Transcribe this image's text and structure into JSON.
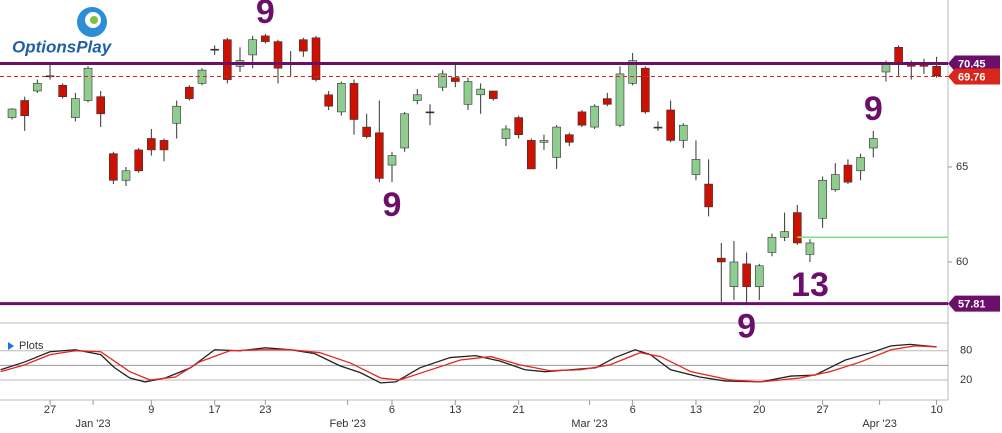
{
  "logo": "OptionsPlay",
  "chart_data": [
    {
      "type": "candlestick",
      "xlim": [
        -0.95,
        73.9
      ],
      "ylim": [
        56.84,
        73.79
      ],
      "yticks": [
        60,
        65
      ],
      "xticks": [
        {
          "value": 3,
          "label": "27"
        },
        {
          "value": 11,
          "label": "9"
        },
        {
          "value": 16,
          "label": "17"
        },
        {
          "value": 20,
          "label": "23"
        },
        {
          "value": 30,
          "label": "6"
        },
        {
          "value": 35,
          "label": "13"
        },
        {
          "value": 40,
          "label": "21"
        },
        {
          "value": 49,
          "label": "6"
        },
        {
          "value": 54,
          "label": "13"
        },
        {
          "value": 59,
          "label": "20"
        },
        {
          "value": 64,
          "label": "27"
        },
        {
          "value": 73,
          "label": "10"
        }
      ],
      "xticks_months": [
        {
          "value": 6.4,
          "label": "Jan '23"
        },
        {
          "value": 26.5,
          "label": "Feb '23"
        },
        {
          "value": 45.6,
          "label": "Mar '23"
        },
        {
          "value": 68.5,
          "label": "Apr '23"
        }
      ],
      "up_color": "#8fcc8f",
      "down_color": "#cc1100",
      "open": [
        67.6,
        68.5,
        69.0,
        69.8,
        69.3,
        67.6,
        68.5,
        68.7,
        65.7,
        64.3,
        65.9,
        66.5,
        66.4,
        67.3,
        69.2,
        69.4,
        71.2,
        71.7,
        70.3,
        70.9,
        71.9,
        71.6,
        70.5,
        71.7,
        71.8,
        68.8,
        67.9,
        69.4,
        67.1,
        66.8,
        65.1,
        66.0,
        68.5,
        67.9,
        69.2,
        69.7,
        68.3,
        68.8,
        69.0,
        66.5,
        67.6,
        66.4,
        66.3,
        65.5,
        66.7,
        67.9,
        67.1,
        68.6,
        67.2,
        69.4,
        70.2,
        67.1,
        68.0,
        66.4,
        64.6,
        64.1,
        60.2,
        58.7,
        59.9,
        58.7,
        60.5,
        61.3,
        62.6,
        60.4,
        62.3,
        63.8,
        65.1,
        64.8,
        66.0,
        70.0,
        71.3,
        70.5,
        70.5,
        70.3
      ],
      "high": [
        68.1,
        68.7,
        69.6,
        70.5,
        69.4,
        68.9,
        70.3,
        69.0,
        65.8,
        65.0,
        66.0,
        67.0,
        66.5,
        68.5,
        69.3,
        70.2,
        71.4,
        71.8,
        71.3,
        71.9,
        72.0,
        71.7,
        71.1,
        71.8,
        71.9,
        69.0,
        69.5,
        69.6,
        67.8,
        68.5,
        65.8,
        67.9,
        69.1,
        68.3,
        70.1,
        70.5,
        69.7,
        69.4,
        69.0,
        67.2,
        67.7,
        66.5,
        66.7,
        67.2,
        66.8,
        68.0,
        68.3,
        68.9,
        70.3,
        71.0,
        70.3,
        67.4,
        68.5,
        67.3,
        66.4,
        65.4,
        61.0,
        61.1,
        60.5,
        59.9,
        61.5,
        62.6,
        63.0,
        61.2,
        64.5,
        65.2,
        65.4,
        65.7,
        66.9,
        70.6,
        71.4,
        70.6,
        70.7,
        70.8
      ],
      "low": [
        67.5,
        66.9,
        68.9,
        69.6,
        68.6,
        67.4,
        68.4,
        67.1,
        64.1,
        64.0,
        64.7,
        65.6,
        65.3,
        66.5,
        68.5,
        69.3,
        70.9,
        69.4,
        70.0,
        70.2,
        71.5,
        69.4,
        69.8,
        70.8,
        69.5,
        68.0,
        67.7,
        66.7,
        66.5,
        64.2,
        64.2,
        65.8,
        68.3,
        67.2,
        69.0,
        69.2,
        68.0,
        67.8,
        68.5,
        66.1,
        66.5,
        64.9,
        65.9,
        64.9,
        66.1,
        67.1,
        67.0,
        68.2,
        67.1,
        69.3,
        67.8,
        66.9,
        66.3,
        66.0,
        64.3,
        62.4,
        57.9,
        58.0,
        57.8,
        58.0,
        60.3,
        61.1,
        60.9,
        60.0,
        61.8,
        63.7,
        64.1,
        64.3,
        65.5,
        69.5,
        69.8,
        69.6,
        69.9,
        69.7
      ],
      "close": [
        68.05,
        67.7,
        69.4,
        69.8,
        68.7,
        68.6,
        70.2,
        67.8,
        64.3,
        64.8,
        64.8,
        65.9,
        65.9,
        68.2,
        68.6,
        70.1,
        71.2,
        69.6,
        70.6,
        71.7,
        71.6,
        70.2,
        70.5,
        71.1,
        69.6,
        68.2,
        69.4,
        67.5,
        66.6,
        64.4,
        65.6,
        67.8,
        68.8,
        67.9,
        69.9,
        69.5,
        69.5,
        69.1,
        68.6,
        67.0,
        66.7,
        64.9,
        66.4,
        67.1,
        66.3,
        67.2,
        68.2,
        68.3,
        69.9,
        70.6,
        67.9,
        67.1,
        66.4,
        67.2,
        65.4,
        62.9,
        60.0,
        60.0,
        58.7,
        59.8,
        61.3,
        61.6,
        61.0,
        61.0,
        64.3,
        64.6,
        64.2,
        65.5,
        66.5,
        70.4,
        70.4,
        70.3,
        70.3,
        69.8
      ],
      "levels": [
        {
          "value": 70.45,
          "color": "#6b0f6b",
          "style": "solid",
          "tag": true
        },
        {
          "value": 69.76,
          "color": "#d9261c",
          "style": "dashed",
          "tag": true
        },
        {
          "value": 57.81,
          "color": "#6b0f6b",
          "style": "solid",
          "tag": true
        },
        {
          "value": 61.3,
          "color": "#7ee07e",
          "style": "thin",
          "start": 62,
          "tag": false
        }
      ],
      "annotations": [
        {
          "text": "9",
          "index": 20,
          "position": "above"
        },
        {
          "text": "9",
          "index": 30,
          "position": "below"
        },
        {
          "text": "9",
          "index": 58,
          "position": "below"
        },
        {
          "text": "13",
          "index": 63,
          "position": "below"
        },
        {
          "text": "9",
          "index": 68,
          "position": "above"
        }
      ]
    },
    {
      "type": "line",
      "title": "Plots",
      "ylim": [
        0,
        100
      ],
      "yticks": [
        20,
        80
      ],
      "levels": [
        50
      ],
      "series": [
        {
          "name": "%K",
          "color": "#222222",
          "x": [
            -0.9,
            1.0,
            3.0,
            5.0,
            7.0,
            8.1,
            9.3,
            10.5,
            12.1,
            14.1,
            16.0,
            18.0,
            20.0,
            22.0,
            23.9,
            25.9,
            27.5,
            29.1,
            30.3,
            32.2,
            34.6,
            36.6,
            38.5,
            40.5,
            42.1,
            44.1,
            46.1,
            47.6,
            49.2,
            50.4,
            52.0,
            54.3,
            56.3,
            59.1,
            61.5,
            63.4,
            65.8,
            67.8,
            69.4,
            70.9,
            73.0
          ],
          "values": [
            41,
            57,
            78,
            82,
            72,
            45,
            24,
            16,
            24,
            45,
            82,
            80,
            86,
            82,
            74,
            49,
            35,
            14,
            16,
            45,
            66,
            70,
            59,
            41,
            37,
            41,
            45,
            66,
            82,
            72,
            41,
            26,
            18,
            16,
            28,
            30,
            61,
            76,
            90,
            93,
            88
          ]
        },
        {
          "name": "%D",
          "color": "#e8231e",
          "x": [
            -0.9,
            1.0,
            3.0,
            5.0,
            7.0,
            9.3,
            10.9,
            12.9,
            14.8,
            17.2,
            19.6,
            22.0,
            24.3,
            26.7,
            29.1,
            30.6,
            32.6,
            35.4,
            37.8,
            40.1,
            42.5,
            44.9,
            47.2,
            49.6,
            51.2,
            53.6,
            56.7,
            59.1,
            62.2,
            64.6,
            67.0,
            69.4,
            71.3,
            73.0
          ],
          "values": [
            37,
            51,
            72,
            80,
            78,
            37,
            20,
            26,
            57,
            80,
            82,
            82,
            76,
            55,
            24,
            20,
            37,
            61,
            68,
            51,
            39,
            41,
            51,
            76,
            68,
            37,
            20,
            16,
            24,
            37,
            57,
            82,
            90,
            88
          ]
        }
      ]
    }
  ]
}
